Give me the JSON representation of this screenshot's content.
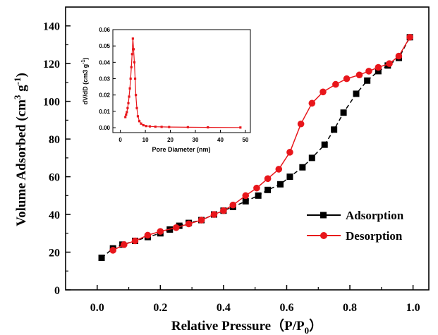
{
  "chart_data": [
    {
      "type": "line",
      "xlabel": "Relative Pressure（P/P",
      "xlabel_sub": "0",
      "xlabel_end": "）",
      "ylabel": "Volume Adsorbed (cm",
      "ylabel_sup1": "3",
      "ylabel_mid": " g",
      "ylabel_sup2": "-1",
      "ylabel_end": ")",
      "xlim": [
        -0.1,
        1.05
      ],
      "ylim": [
        0,
        150
      ],
      "xticks": [
        "0.0",
        "0.2",
        "0.4",
        "0.6",
        "0.8",
        "1.0"
      ],
      "yticks": [
        "0",
        "20",
        "40",
        "60",
        "80",
        "100",
        "120",
        "140"
      ],
      "legend_position": "bottom-right",
      "grid": false,
      "series": [
        {
          "name": "Adsorption",
          "color": "#000000",
          "marker": "square",
          "dash": true,
          "x": [
            0.014,
            0.05,
            0.08,
            0.12,
            0.16,
            0.2,
            0.23,
            0.26,
            0.29,
            0.33,
            0.37,
            0.4,
            0.43,
            0.47,
            0.51,
            0.54,
            0.58,
            0.61,
            0.65,
            0.68,
            0.72,
            0.75,
            0.78,
            0.82,
            0.855,
            0.89,
            0.92,
            0.955,
            0.99
          ],
          "y": [
            17,
            22,
            24,
            26,
            28,
            30,
            32,
            34,
            35.5,
            37,
            40,
            42,
            44,
            47,
            50,
            53,
            56,
            60,
            65,
            70,
            77,
            85,
            94,
            104,
            111,
            116,
            119,
            123,
            134
          ]
        },
        {
          "name": "Desorption",
          "color": "#e8161b",
          "marker": "circle",
          "dash": false,
          "x": [
            0.99,
            0.955,
            0.925,
            0.89,
            0.86,
            0.83,
            0.79,
            0.755,
            0.715,
            0.68,
            0.645,
            0.61,
            0.575,
            0.54,
            0.505,
            0.47,
            0.43,
            0.4,
            0.37,
            0.33,
            0.29,
            0.25,
            0.2,
            0.16,
            0.12,
            0.085,
            0.05
          ],
          "y": [
            134,
            124,
            120,
            118,
            116,
            114,
            112,
            109,
            105,
            99,
            88,
            73,
            64,
            59,
            54,
            50,
            45,
            42,
            40,
            37,
            35,
            33,
            31,
            29,
            26,
            24,
            21
          ]
        }
      ]
    },
    {
      "type": "line",
      "xlabel": "Pore Diameter (nm)",
      "ylabel": "dV/dD (cm3 g",
      "ylabel_sup": "-1",
      "ylabel_end": ")",
      "xlim": [
        -3,
        52
      ],
      "ylim": [
        -0.003,
        0.06
      ],
      "xticks": [
        "0",
        "10",
        "20",
        "30",
        "40",
        "50"
      ],
      "yticks": [
        "0.00",
        "0.01",
        "0.02",
        "0.03",
        "0.04",
        "0.05",
        "0.06"
      ],
      "grid": false,
      "series": [
        {
          "color": "#e8161b",
          "marker": "square",
          "x": [
            2.0,
            2.3,
            2.6,
            2.9,
            3.2,
            3.5,
            3.8,
            4.1,
            4.4,
            4.7,
            5.0,
            5.3,
            5.6,
            5.9,
            6.2,
            6.6,
            7.0,
            7.6,
            8.3,
            9.2,
            10.3,
            11.8,
            14,
            16.5,
            19.5,
            27,
            35,
            48
          ],
          "y": [
            0.0065,
            0.008,
            0.0095,
            0.012,
            0.015,
            0.019,
            0.024,
            0.03,
            0.037,
            0.045,
            0.0545,
            0.048,
            0.04,
            0.03,
            0.02,
            0.012,
            0.007,
            0.004,
            0.0025,
            0.0015,
            0.001,
            0.0008,
            0.0006,
            0.0005,
            0.0004,
            0.0003,
            0.0002,
            0.0001
          ]
        }
      ]
    }
  ]
}
